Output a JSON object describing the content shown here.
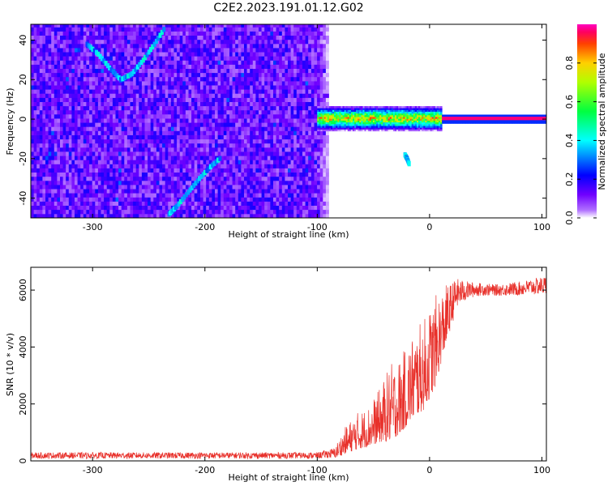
{
  "figure": {
    "title": "C2E2.2023.191.01.12.G02"
  },
  "chart_data": [
    {
      "type": "heatmap",
      "xlabel": "Height of straight line (km)",
      "ylabel": "Frequency (Hz)",
      "xlim": [
        -355,
        104
      ],
      "ylim": [
        -50,
        48
      ],
      "x_ticks": [
        -300,
        -200,
        -100,
        0,
        100
      ],
      "y_ticks": [
        -40,
        -20,
        0,
        20,
        40
      ],
      "colorbar": {
        "label": "Normalized spectral amplitude",
        "range": [
          0,
          1
        ],
        "ticks": [
          0.0,
          0.2,
          0.4,
          0.6,
          0.8
        ],
        "colors": [
          "#ffffff",
          "#7f00ff",
          "#0000ff",
          "#00ffff",
          "#00ff00",
          "#ffff00",
          "#ff8000",
          "#ff0000",
          "#ff00ff"
        ]
      },
      "regions": {
        "noise_x_range": [
          -355,
          -90
        ],
        "signal_x_range": [
          -100,
          104
        ],
        "signal_frequency_hz": 0
      },
      "features": [
        {
          "kind": "v-shaped trace",
          "x": [
            -305,
            -295,
            -285,
            -275,
            -265,
            -255,
            -245,
            -235
          ],
          "y": [
            38,
            33,
            26,
            20,
            23,
            30,
            38,
            47
          ]
        },
        {
          "kind": "diagonal trace",
          "x": [
            -232,
            -225,
            -215,
            -205,
            -195,
            -185
          ],
          "y": [
            -48,
            -44,
            -37,
            -30,
            -24,
            -19
          ]
        },
        {
          "kind": "short trace",
          "x": [
            -22,
            -20,
            -18
          ],
          "y": [
            -18,
            -20,
            -23
          ]
        }
      ]
    },
    {
      "type": "line",
      "xlabel": "Height of straight line (km)",
      "ylabel": "SNR (10 * v/v)",
      "xlim": [
        -355,
        104
      ],
      "ylim": [
        0,
        6800
      ],
      "x_ticks": [
        -300,
        -200,
        -100,
        0,
        100
      ],
      "y_ticks": [
        0,
        2000,
        4000,
        6000
      ],
      "color": "#e8302a",
      "envelope": {
        "x": [
          -355,
          -100,
          -85,
          -75,
          -65,
          -55,
          -45,
          -35,
          -25,
          -15,
          -5,
          5,
          15,
          25,
          35,
          45,
          60,
          80,
          104
        ],
        "low": [
          80,
          80,
          100,
          250,
          400,
          500,
          650,
          700,
          1000,
          1500,
          1800,
          2600,
          4200,
          5400,
          5700,
          5800,
          5800,
          5800,
          5850
        ],
        "high": [
          300,
          300,
          450,
          1200,
          1700,
          1900,
          2500,
          3400,
          3700,
          4500,
          5000,
          5800,
          6200,
          6400,
          6300,
          6250,
          6200,
          6300,
          6500
        ]
      }
    }
  ]
}
